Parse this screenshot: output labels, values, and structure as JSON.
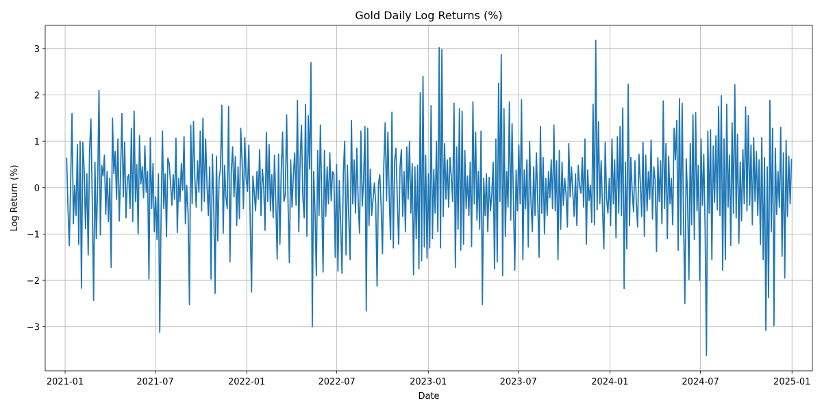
{
  "chart_data": {
    "type": "line",
    "title": "Gold Daily Log Returns (%)",
    "xlabel": "Date",
    "ylabel": "Log Return (%)",
    "x_start": "2021-01-04",
    "x_end": "2024-12-31",
    "xlim": [
      "2020-11-22",
      "2025-02-11"
    ],
    "ylim": [
      -3.95,
      3.5
    ],
    "grid": true,
    "legend": "none",
    "xticks": [
      "2021-01",
      "2021-07",
      "2022-01",
      "2022-07",
      "2023-01",
      "2023-07",
      "2024-01",
      "2024-07",
      "2025-01"
    ],
    "yticks": [
      -3,
      -2,
      -1,
      0,
      1,
      2,
      3
    ],
    "series": [
      {
        "color": "#1f77b4",
        "values": [
          0.65,
          -0.42,
          -1.25,
          0.1,
          1.6,
          -0.78,
          0.05,
          -0.6,
          0.93,
          -1.22,
          1.0,
          -2.17,
          0.98,
          0.4,
          -0.88,
          0.3,
          -1.45,
          0.8,
          1.48,
          -0.25,
          -2.43,
          0.55,
          -1.1,
          0.05,
          2.1,
          -1.02,
          0.48,
          0.25,
          0.7,
          -0.58,
          0.35,
          -0.73,
          0.2,
          -1.72,
          1.5,
          0.3,
          0.78,
          -0.25,
          1.05,
          -0.72,
          0.35,
          1.6,
          -0.2,
          0.98,
          -0.65,
          0.2,
          0.28,
          -0.45,
          1.28,
          -0.73,
          1.65,
          -0.3,
          0.5,
          -1.0,
          1.12,
          0.08,
          0.45,
          -0.22,
          0.9,
          -0.1,
          0.35,
          -1.97,
          1.08,
          -0.45,
          0.52,
          -0.95,
          -0.2,
          -1.12,
          0.3,
          -3.12,
          -0.6,
          1.22,
          -0.45,
          0.3,
          -1.06,
          0.64,
          0.52,
          0.1,
          -0.38,
          0.28,
          -0.25,
          1.07,
          -0.97,
          0.2,
          -0.3,
          0.52,
          -0.05,
          1.1,
          -0.78,
          0.05,
          -0.55,
          -2.52,
          1.35,
          -0.35,
          1.43,
          0.2,
          -0.42,
          0.58,
          -0.1,
          1.22,
          -0.5,
          1.5,
          -0.3,
          1.05,
          0.08,
          -0.6,
          0.45,
          -1.97,
          0.72,
          -0.35,
          -2.28,
          0.68,
          -1.15,
          0.22,
          0.4,
          1.78,
          -0.98,
          0.48,
          -0.2,
          -0.45,
          1.75,
          -1.6,
          0.35,
          0.88,
          -0.2,
          0.67,
          -0.82,
          0.45,
          -0.67,
          1.28,
          0.58,
          -0.45,
          1.08,
          0.2,
          -0.08,
          0.92,
          -0.72,
          -2.25,
          0.25,
          -0.1,
          -0.5,
          0.35,
          -0.25,
          0.82,
          -0.6,
          0.4,
          0.05,
          -0.92,
          1.2,
          -0.3,
          0.93,
          -0.5,
          0.28,
          -0.65,
          0.7,
          -0.35,
          -1.54,
          0.72,
          -1.22,
          0.35,
          1.2,
          -0.3,
          -0.15,
          1.57,
          -0.25,
          -1.62,
          0.6,
          -0.42,
          0.28,
          0.75,
          -0.38,
          1.88,
          -0.95,
          0.6,
          1.35,
          -0.2,
          -0.65,
          1.8,
          -1.05,
          1.55,
          0.4,
          2.7,
          -3.0,
          0.35,
          -0.5,
          -1.9,
          0.8,
          -0.6,
          1.35,
          -0.25,
          -1.82,
          0.8,
          -0.62,
          0.45,
          -0.35,
          0.75,
          -0.28,
          0.35,
          0.28,
          -1.5,
          0.5,
          -1.8,
          0.15,
          -0.75,
          -1.85,
          0.3,
          1.0,
          -1.45,
          0.48,
          -0.62,
          -1.55,
          1.45,
          -0.35,
          0.6,
          -0.55,
          0.85,
          -0.3,
          -0.98,
          1.22,
          -0.4,
          0.15,
          1.32,
          -2.66,
          1.28,
          -0.82,
          0.4,
          -0.6,
          -0.25,
          0.1,
          -0.35,
          -2.13,
          0.07,
          0.28,
          -0.4,
          -1.42,
          0.48,
          1.4,
          -0.28,
          1.2,
          -0.22,
          -1.12,
          1.63,
          -1.3,
          0.58,
          0.85,
          -0.3,
          -1.22,
          0.45,
          0.82,
          -0.62,
          0.35,
          -0.95,
          0.88,
          -0.25,
          1.0,
          -0.55,
          0.52,
          -1.88,
          0.45,
          -1.1,
          0.48,
          -1.75,
          2.05,
          -1.58,
          2.4,
          -1.28,
          0.7,
          -1.52,
          0.3,
          -1.3,
          1.77,
          -1.1,
          0.4,
          -0.55,
          1.0,
          -0.95,
          3.02,
          -1.3,
          2.98,
          -0.62,
          0.95,
          -0.25,
          0.6,
          -0.42,
          0.65,
          0.22,
          -0.3,
          1.82,
          -1.72,
          0.88,
          -0.9,
          1.7,
          -1.35,
          1.65,
          -1.22,
          0.8,
          -0.45,
          0.25,
          -0.6,
          0.55,
          -1.27,
          1.85,
          -0.35,
          1.2,
          -0.7,
          0.35,
          -0.9,
          1.22,
          -2.52,
          0.2,
          -0.6,
          0.3,
          -0.95,
          0.22,
          -0.5,
          -0.15,
          0.55,
          -1.75,
          1.05,
          -1.6,
          2.25,
          -0.3,
          2.87,
          -1.9,
          1.7,
          -1.05,
          0.35,
          -0.42,
          1.85,
          -0.7,
          1.38,
          -0.28,
          -1.78,
          0.38,
          -0.5,
          0.92,
          -0.35,
          1.9,
          -1.55,
          0.38,
          -0.45,
          0.6,
          -1.28,
          1.0,
          -0.3,
          -0.95,
          0.45,
          -0.6,
          0.75,
          -0.25,
          -1.5,
          1.32,
          -0.55,
          0.65,
          -1.0,
          0.2,
          -0.6,
          0.35,
          -0.22,
          0.6,
          -0.45,
          1.35,
          -0.5,
          0.58,
          -1.55,
          0.8,
          -0.9,
          0.55,
          -0.38,
          0.2,
          -0.15,
          -0.85,
          0.95,
          -0.2,
          0.45,
          -0.1,
          -0.62,
          0.3,
          -0.82,
          0.48,
          0.05,
          -0.12,
          0.65,
          -0.42,
          1.05,
          -1.22,
          0.38,
          -0.28,
          0.05,
          -0.75,
          1.8,
          -0.8,
          3.18,
          -0.48,
          1.42,
          -0.35,
          0.58,
          -0.45,
          -1.32,
          0.98,
          -0.25,
          -0.55,
          0.2,
          -0.82,
          1.05,
          -0.35,
          0.6,
          -1.08,
          1.1,
          -0.55,
          1.32,
          -0.6,
          1.72,
          -2.18,
          0.55,
          -1.32,
          2.23,
          -0.82,
          0.65,
          -0.1,
          -0.52,
          0.58,
          -0.3,
          -0.85,
          0.72,
          0.1,
          -0.62,
          0.98,
          -1.05,
          0.7,
          -0.5,
          0.35,
          -0.25,
          1.03,
          -0.68,
          0.45,
          0.15,
          -1.38,
          0.65,
          -0.3,
          0.58,
          -0.78,
          1.87,
          -0.45,
          0.95,
          -1.1,
          0.68,
          -0.35,
          0.2,
          -0.8,
          1.28,
          0.6,
          1.45,
          -1.35,
          1.92,
          -1.02,
          1.82,
          -0.65,
          -2.5,
          0.62,
          -0.2,
          -1.98,
          0.95,
          -0.8,
          1.57,
          -1.12,
          1.62,
          -0.5,
          0.48,
          -2.0,
          1.05,
          -0.38,
          0.72,
          -0.88,
          -3.62,
          1.22,
          -0.55,
          1.25,
          -1.55,
          0.9,
          -0.32,
          1.12,
          -0.48,
          1.75,
          -0.6,
          1.98,
          -1.78,
          1.05,
          -1.55,
          1.8,
          -0.42,
          0.7,
          -1.25,
          1.4,
          -0.55,
          2.22,
          -0.65,
          1.15,
          -1.2,
          0.55,
          -0.72,
          0.82,
          -0.35,
          1.74,
          -0.5,
          1.55,
          -0.38,
          0.92,
          -0.8,
          1.08,
          -0.3,
          0.78,
          -0.6,
          0.6,
          -1.22,
          1.08,
          -1.55,
          0.65,
          -3.08,
          0.45,
          -2.37,
          1.88,
          -0.95,
          1.28,
          -2.98,
          0.85,
          -0.58,
          0.35,
          -0.42,
          1.3,
          -1.48,
          0.75,
          -1.95,
          1.02,
          -0.62,
          0.68,
          -0.35,
          0.62
        ]
      }
    ]
  }
}
